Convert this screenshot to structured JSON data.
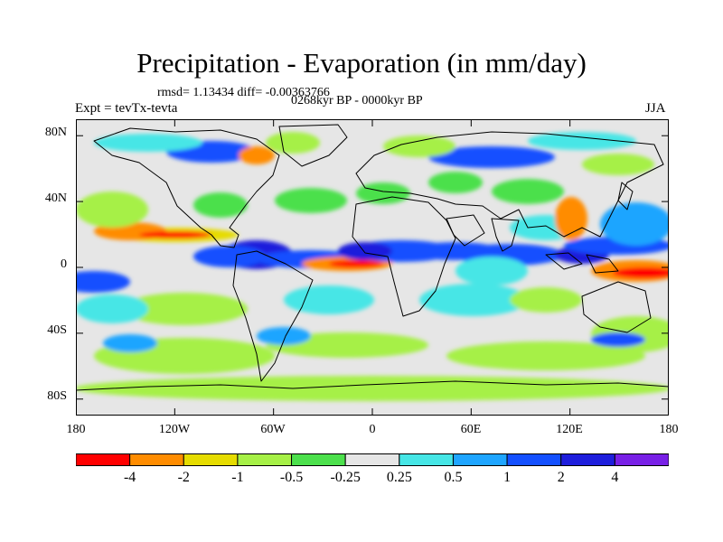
{
  "title": "Precipitation - Evaporation (in mm/day)",
  "stats": "rmsd= 1.13434 diff= -0.00363766",
  "period": "0268kyr BP - 0000kyr BP",
  "experiment": "Expt = tevTx-tevta",
  "season": "JJA",
  "y_axis": {
    "ticks": [
      "80N",
      "40N",
      "0",
      "40S",
      "80S"
    ],
    "values": [
      80,
      40,
      0,
      -40,
      -80
    ],
    "range": [
      -90,
      90
    ]
  },
  "x_axis": {
    "ticks": [
      "180",
      "120W",
      "60W",
      "0",
      "60E",
      "120E",
      "180"
    ],
    "values": [
      -180,
      -120,
      -60,
      0,
      60,
      120,
      180
    ],
    "range": [
      -180,
      180
    ]
  },
  "colorbar": {
    "labels": [
      "-4",
      "-2",
      "-1",
      "-0.5",
      "-0.25",
      "0.25",
      "0.5",
      "1",
      "2",
      "4"
    ],
    "colors": [
      "#ff0000",
      "#ff8c00",
      "#e6dc00",
      "#a6f046",
      "#4ce04c",
      "#e6e6e6",
      "#46e6e6",
      "#1fa5ff",
      "#1450ff",
      "#1e1edc",
      "#7820e6"
    ]
  },
  "colors": {
    "neutral": "#e6e6e6",
    "coastline": "#000000"
  }
}
